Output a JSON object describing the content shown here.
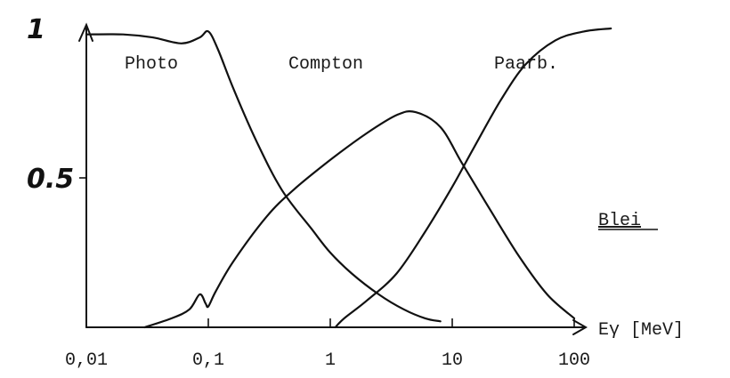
{
  "chart_data": {
    "type": "line",
    "x_scale": "log",
    "xlim": [
      0.01,
      250
    ],
    "ylim": [
      0,
      1
    ],
    "xlabel": "Eγ [MeV]",
    "ylabel": "",
    "title": "",
    "material_label": "Blei",
    "x_ticks": [
      {
        "value": 0.01,
        "label": "0,01"
      },
      {
        "value": 0.1,
        "label": "0,1"
      },
      {
        "value": 1,
        "label": "1"
      },
      {
        "value": 10,
        "label": "10"
      },
      {
        "value": 100,
        "label": "100"
      }
    ],
    "y_ticks": [
      {
        "value": 0.5,
        "label": "0.5"
      },
      {
        "value": 1,
        "label": "1"
      }
    ],
    "series": [
      {
        "name": "Photo",
        "x": [
          0.01,
          0.02,
          0.035,
          0.06,
          0.085,
          0.1,
          0.12,
          0.16,
          0.25,
          0.4,
          0.7,
          1.0,
          1.5,
          2.5,
          4.0,
          6.0,
          8.0
        ],
        "y": [
          0.98,
          0.98,
          0.97,
          0.95,
          0.97,
          0.99,
          0.93,
          0.8,
          0.62,
          0.46,
          0.33,
          0.25,
          0.18,
          0.11,
          0.06,
          0.03,
          0.02
        ]
      },
      {
        "name": "Compton",
        "x": [
          0.03,
          0.05,
          0.07,
          0.085,
          0.095,
          0.1,
          0.115,
          0.16,
          0.3,
          0.5,
          1.0,
          2.0,
          3.5,
          5.0,
          8.0,
          12,
          20,
          35,
          60,
          100
        ],
        "y": [
          0.0,
          0.03,
          0.06,
          0.11,
          0.08,
          0.07,
          0.12,
          0.22,
          0.37,
          0.46,
          0.56,
          0.65,
          0.71,
          0.72,
          0.67,
          0.55,
          0.4,
          0.24,
          0.11,
          0.03
        ]
      },
      {
        "name": "Paarb.",
        "x": [
          1.1,
          1.3,
          2.0,
          3.5,
          6.0,
          10,
          15,
          25,
          40,
          70,
          120,
          200
        ],
        "y": [
          0.0,
          0.03,
          0.09,
          0.18,
          0.32,
          0.47,
          0.6,
          0.76,
          0.88,
          0.96,
          0.99,
          1.0
        ]
      }
    ]
  }
}
